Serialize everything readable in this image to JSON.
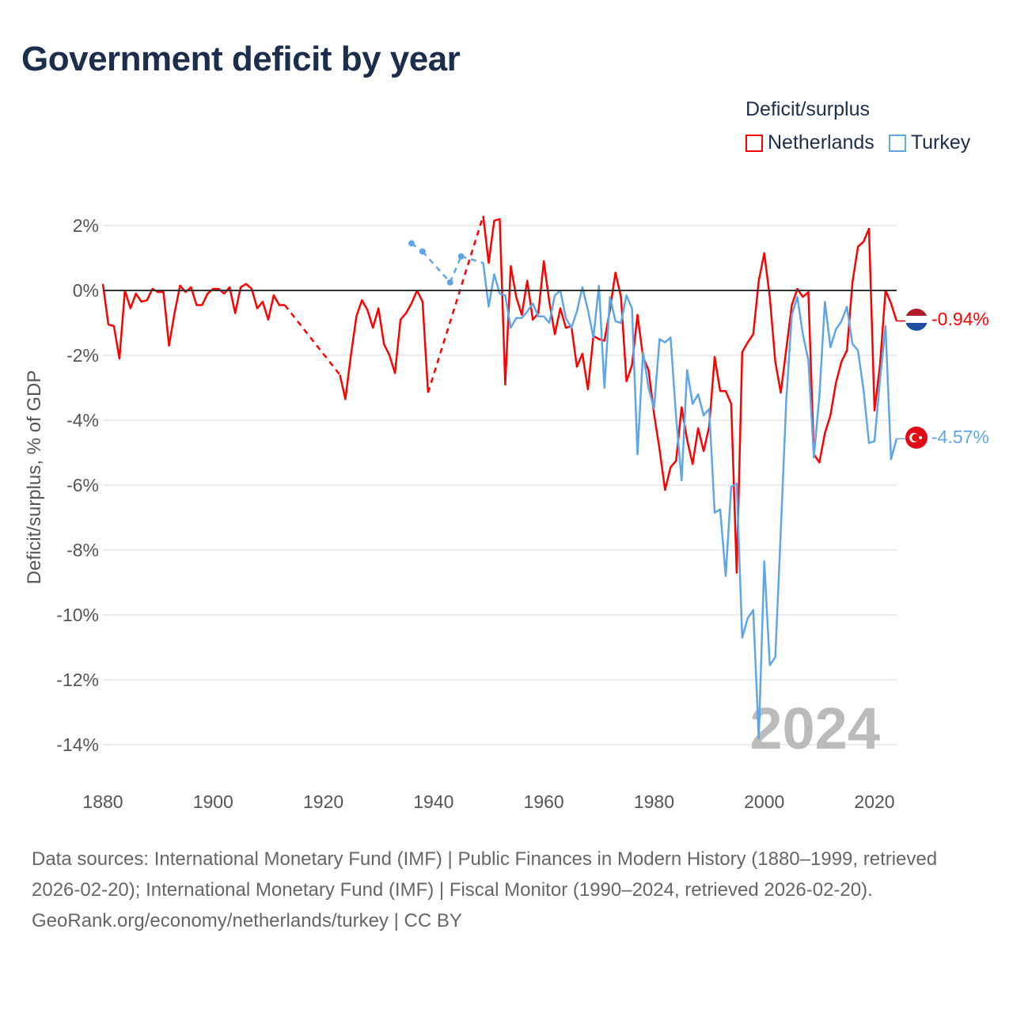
{
  "title": "Government deficit by year",
  "legend": {
    "title": "Deficit/surplus",
    "items": [
      "Netherlands",
      "Turkey"
    ]
  },
  "colors": {
    "netherlands": "#ff0000",
    "turkey": "#5ea6e8",
    "zero_line": "#333333",
    "grid": "#e6e6e6",
    "watermark": "#bbbbbb"
  },
  "current_year_label": "2024",
  "end_labels": {
    "netherlands": "-0.94%",
    "turkey": "-4.57%"
  },
  "footer": {
    "sources": "Data sources: International Monetary Fund (IMF) | Public Finances in Modern History (1880–1999, retrieved 2026-02-20); International Monetary Fund (IMF) | Fiscal Monitor (1990–2024, retrieved 2026-02-20).",
    "credit": "GeoRank.org/economy/netherlands/turkey | CC BY"
  },
  "chart_data": {
    "type": "line",
    "title": "Government deficit by year",
    "xlabel": "",
    "ylabel": "Deficit/surplus, % of GDP",
    "xlim": [
      1880,
      2024
    ],
    "ylim": [
      -15,
      2.5
    ],
    "xticks": [
      1880,
      1900,
      1920,
      1940,
      1960,
      1980,
      2000,
      2020
    ],
    "xtick_labels": [
      "1880",
      "1900",
      "1920",
      "1940",
      "1960",
      "1980",
      "2000",
      "2020"
    ],
    "yticks": [
      2,
      0,
      -2,
      -4,
      -6,
      -8,
      -10,
      -12,
      -14
    ],
    "ytick_labels": [
      "2%",
      "0%",
      "-2%",
      "-4%",
      "-6%",
      "-8%",
      "-10%",
      "-12%",
      "-14%"
    ],
    "grid": true,
    "legend_position": "top-right",
    "series": [
      {
        "name": "Netherlands",
        "start_year": 1880,
        "values": [
          0.2,
          -1.05,
          -1.1,
          -2.1,
          0,
          -0.55,
          -0.1,
          -0.35,
          -0.3,
          0.05,
          -0.05,
          -0.05,
          -1.7,
          -0.7,
          0.15,
          -0.05,
          0.1,
          -0.45,
          -0.45,
          -0.1,
          0.05,
          0.05,
          -0.1,
          0.1,
          -0.7,
          0.1,
          0.2,
          0.05,
          -0.55,
          -0.35,
          -0.9,
          -0.15,
          -0.45,
          -0.45,
          null,
          null,
          null,
          null,
          null,
          null,
          null,
          null,
          null,
          -2.6,
          -3.35,
          -2.0,
          -0.8,
          -0.3,
          -0.6,
          -1.15,
          -0.55,
          -1.65,
          -2.0,
          -2.55,
          -0.9,
          -0.7,
          -0.4,
          0.0,
          -0.35,
          -3.15,
          null,
          null,
          null,
          null,
          null,
          null,
          null,
          null,
          null,
          2.3,
          0.85,
          2.15,
          2.2,
          -2.9,
          0.75,
          -0.2,
          -0.75,
          0.3,
          -0.9,
          -0.7,
          0.9,
          -0.35,
          -1.35,
          -0.55,
          -1.15,
          -1.1,
          -2.35,
          -1.95,
          -3.05,
          -1.4,
          -1.5,
          -1.55,
          -0.6,
          0.55,
          -0.2,
          -2.8,
          -2.3,
          -0.75,
          -2.05,
          -2.45,
          -3.8,
          -4.9,
          -6.15,
          -5.45,
          -5.25,
          -3.6,
          -4.6,
          -5.35,
          -4.25,
          -4.95,
          -4.2,
          -2.05,
          -3.1,
          -3.1,
          -3.5,
          -8.7,
          -1.9,
          -1.6,
          -1.35,
          0.3,
          1.15,
          -0.2,
          -2.2,
          -3.15,
          -1.8,
          -0.45,
          0.05,
          -0.2,
          -0.05,
          -5.05,
          -5.3,
          -4.4,
          -3.85,
          -2.85,
          -2.2,
          -1.85,
          0.25,
          1.35,
          1.5,
          1.9,
          -3.7,
          -2.3,
          0.0,
          -0.4,
          -0.94
        ]
      },
      {
        "name": "Turkey",
        "start_year": 1936,
        "values": [
          1.45,
          null,
          1.2,
          null,
          null,
          null,
          null,
          0.25,
          null,
          1.05,
          null,
          null,
          null,
          0.85,
          -0.5,
          0.5,
          -0.1,
          -0.15,
          -1.15,
          -0.85,
          -0.85,
          -0.65,
          -0.4,
          -0.8,
          -0.8,
          -1.0,
          -0.15,
          0.0,
          -0.85,
          -1.15,
          -0.65,
          0.1,
          -0.6,
          -1.45,
          0.15,
          -3.0,
          -0.2,
          -0.95,
          -1.0,
          -0.15,
          -0.55,
          -5.05,
          -1.9,
          -3.0,
          -3.65,
          -1.5,
          -1.6,
          -1.45,
          -3.9,
          -5.85,
          -2.45,
          -3.5,
          -3.2,
          -3.85,
          -3.65,
          -6.85,
          -6.75,
          -8.8,
          -6.05,
          -5.95,
          -10.7,
          -10.1,
          -9.85,
          -13.8,
          -8.35,
          -11.55,
          -11.3,
          -7.4,
          -3.35,
          -0.75,
          -0.2,
          -1.35,
          -2.15,
          -5.15,
          -3.25,
          -0.35,
          -1.75,
          -1.2,
          -0.95,
          -0.5,
          -1.65,
          -1.85,
          -3.05,
          -4.7,
          -4.65,
          -2.75,
          -1.1,
          -5.2,
          -4.57
        ]
      }
    ]
  }
}
